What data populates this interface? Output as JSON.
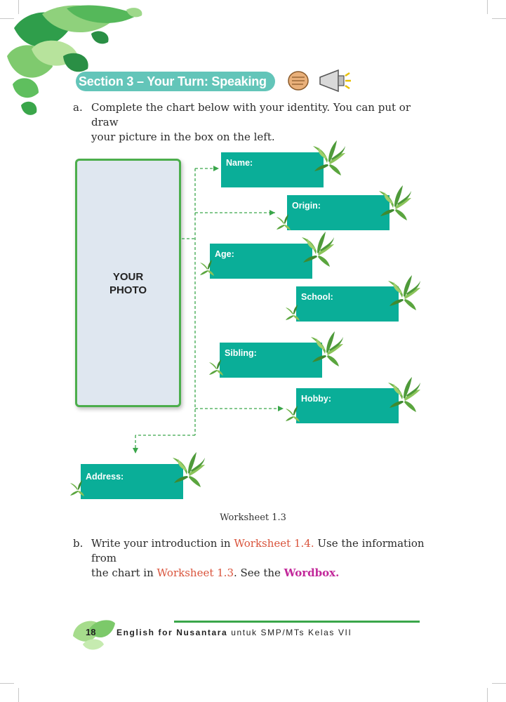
{
  "section": {
    "title": "Section 3 – Your Turn: Speaking"
  },
  "instruction_a": {
    "marker": "a.",
    "line1": "Complete the chart below with your identity. You can put or draw",
    "line2": "your picture in the box on the left."
  },
  "photo_box": {
    "line1": "YOUR",
    "line2": "PHOTO"
  },
  "fields": {
    "name": "Name:",
    "origin": "Origin:",
    "age": "Age:",
    "school": "School:",
    "sibling": "Sibling:",
    "hobby": "Hobby:",
    "address": "Address:"
  },
  "caption": "Worksheet 1.3",
  "instruction_b": {
    "marker": "b.",
    "line1_pre": "Write your introduction in ",
    "line1_ref": "Worksheet 1.4.",
    "line1_post": " Use the information from",
    "line2_pre": "the chart in ",
    "line2_ref": "Worksheet 1.3",
    "line2_mid": ". See the ",
    "line2_link": "Wordbox."
  },
  "footer": {
    "page": "18",
    "title_bold": "English for Nusantara",
    "title_rest": " untuk SMP/MTs Kelas VII"
  },
  "colors": {
    "field_fill": "#0aae98",
    "section_pill": "#63c5b9",
    "photo_border": "#4cae4c",
    "connector": "#3aa64a",
    "reference_red": "#d9533b",
    "wordbox_pink": "#c2289a"
  },
  "icons": [
    "speaking-fist-icon",
    "megaphone-icon",
    "plant-icon",
    "leaf-decoration"
  ]
}
